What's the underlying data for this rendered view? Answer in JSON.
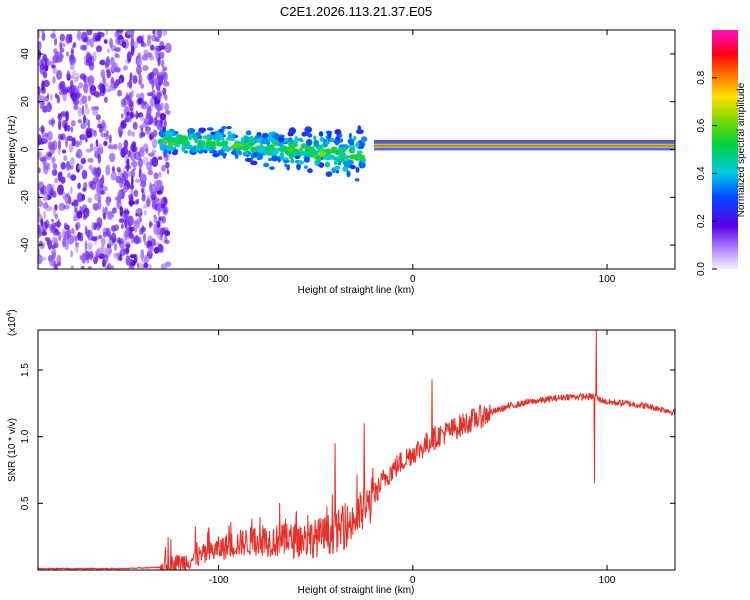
{
  "title": "C2E1.2026.113.21.37.E05",
  "colorbar": {
    "label": "Normalized spectral amplitude",
    "ticks": [
      "0.0",
      "0.2",
      "0.4",
      "0.6",
      "0.8"
    ],
    "tick_values": [
      0.0,
      0.2,
      0.4,
      0.6,
      0.8
    ]
  },
  "chart_data": [
    {
      "type": "heatmap",
      "title": "C2E1.2026.113.21.37.E05",
      "xlabel": "Height of straight line (km)",
      "ylabel": "Frequency (Hz)",
      "xlim": [
        -193,
        135
      ],
      "ylim": [
        -50,
        50
      ],
      "x_ticks": [
        -100,
        0,
        100
      ],
      "x_tick_labels": [
        "-100",
        "0",
        "100"
      ],
      "y_ticks": [
        -40,
        -20,
        0,
        20,
        40
      ],
      "y_tick_labels": [
        "-40",
        "-20",
        "0",
        "20",
        "40"
      ],
      "colorbar_range": [
        0,
        1
      ],
      "regions": [
        {
          "name": "broadband noise",
          "x_range": [
            -193,
            -130
          ],
          "freq_range": [
            -50,
            50
          ],
          "amplitude": 0.15
        },
        {
          "name": "scattered band",
          "x_range": [
            -130,
            -25
          ],
          "center_freq_start": 4,
          "center_freq_end": -2,
          "amplitude": 0.45
        },
        {
          "name": "steady tone",
          "x_range": [
            -20,
            135
          ],
          "center_freq": 1.5,
          "amplitude": 0.95
        }
      ]
    },
    {
      "type": "line",
      "xlabel": "Height of straight line (km)",
      "ylabel": "SNR (10 * v/v)",
      "y_scale_label": "(x10",
      "y_scale_exp": "4",
      "xlim": [
        -193,
        135
      ],
      "ylim": [
        0,
        1.8
      ],
      "x_ticks": [
        -100,
        0,
        100
      ],
      "x_tick_labels": [
        "-100",
        "0",
        "100"
      ],
      "y_ticks": [
        0.5,
        1.0,
        1.5
      ],
      "y_tick_labels": [
        "0.5",
        "1.0",
        "1.5"
      ],
      "series": [
        {
          "name": "SNR",
          "color": "#e8302a",
          "x": [
            -193,
            -170,
            -150,
            -130,
            -120,
            -110,
            -100,
            -90,
            -80,
            -70,
            -60,
            -50,
            -40,
            -35,
            -30,
            -25,
            -20,
            -15,
            -10,
            -5,
            0,
            5,
            10,
            15,
            20,
            30,
            40,
            50,
            60,
            70,
            80,
            90,
            94,
            96,
            100,
            110,
            120,
            130,
            135
          ],
          "y": [
            0.01,
            0.01,
            0.01,
            0.02,
            0.05,
            0.1,
            0.16,
            0.2,
            0.22,
            0.22,
            0.22,
            0.24,
            0.28,
            0.32,
            0.38,
            0.45,
            0.55,
            0.68,
            0.76,
            0.82,
            0.88,
            0.92,
            0.98,
            1.02,
            1.05,
            1.12,
            1.18,
            1.23,
            1.26,
            1.28,
            1.3,
            1.3,
            1.3,
            1.28,
            1.26,
            1.25,
            1.23,
            1.2,
            1.18
          ]
        }
      ],
      "spikes": [
        {
          "x": -40,
          "y": 0.95
        },
        {
          "x": -25,
          "y": 1.1
        },
        {
          "x": 10,
          "y": 1.43
        },
        {
          "x": 94.5,
          "y": 1.8
        },
        {
          "x": 93.5,
          "y": 0.65
        }
      ]
    }
  ]
}
